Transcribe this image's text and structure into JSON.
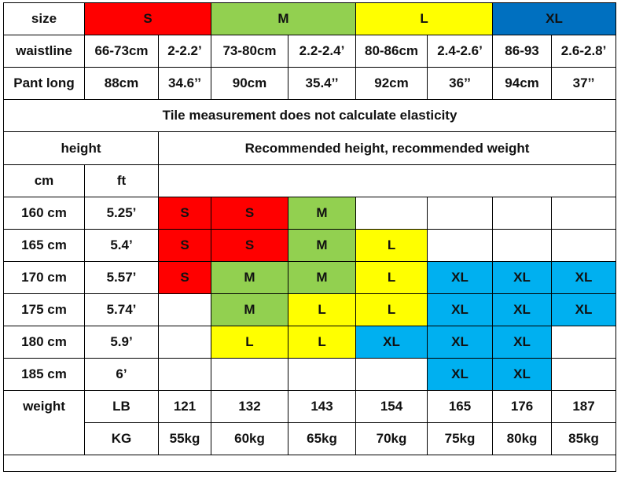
{
  "header": {
    "size_label": "size",
    "sizes": [
      "S",
      "M",
      "L",
      "XL"
    ]
  },
  "waistline": {
    "label": "waistline",
    "values": [
      "66-73cm",
      "2-2.2’",
      "73-80cm",
      "2.2-2.4’",
      "80-86cm",
      "2.4-2.6’",
      "86-93",
      "2.6-2.8’"
    ]
  },
  "pant_long": {
    "label": "Pant long",
    "values": [
      "88cm",
      "34.6’’",
      "90cm",
      "35.4’’",
      "92cm",
      "36’’",
      "94cm",
      "37’’"
    ]
  },
  "note": "Tile measurement does not calculate elasticity",
  "height_header": {
    "label": "height",
    "recommended": "Recommended height, recommended weight",
    "cm": "cm",
    "ft": "ft"
  },
  "height_rows": [
    {
      "cm": "160 cm",
      "ft": "5.25’",
      "cells": [
        "S",
        "S",
        "M",
        "",
        "",
        "",
        ""
      ]
    },
    {
      "cm": "165 cm",
      "ft": "5.4’",
      "cells": [
        "S",
        "S",
        "M",
        "L",
        "",
        "",
        ""
      ]
    },
    {
      "cm": "170 cm",
      "ft": "5.57’",
      "cells": [
        "S",
        "M",
        "M",
        "L",
        "XL",
        "XL",
        "XL"
      ]
    },
    {
      "cm": "175 cm",
      "ft": "5.74’",
      "cells": [
        "",
        "M",
        "L",
        "L",
        "XL",
        "XL",
        "XL"
      ]
    },
    {
      "cm": "180 cm",
      "ft": "5.9’",
      "cells": [
        "",
        "L",
        "L",
        "XL",
        "XL",
        "XL",
        ""
      ]
    },
    {
      "cm": "185 cm",
      "ft": "6’",
      "cells": [
        "",
        "",
        "",
        "",
        "XL",
        "XL",
        ""
      ]
    }
  ],
  "weight": {
    "label": "weight",
    "lb_label": "LB",
    "kg_label": "KG",
    "lb": [
      "121",
      "132",
      "143",
      "154",
      "165",
      "176",
      "187"
    ],
    "kg": [
      "55kg",
      "60kg",
      "65kg",
      "70kg",
      "75kg",
      "80kg",
      "85kg"
    ]
  },
  "colors": {
    "S": "#ff0000",
    "M": "#92d050",
    "L": "#ffff00",
    "XL_header": "#0070c0",
    "XL": "#00b0f0"
  }
}
